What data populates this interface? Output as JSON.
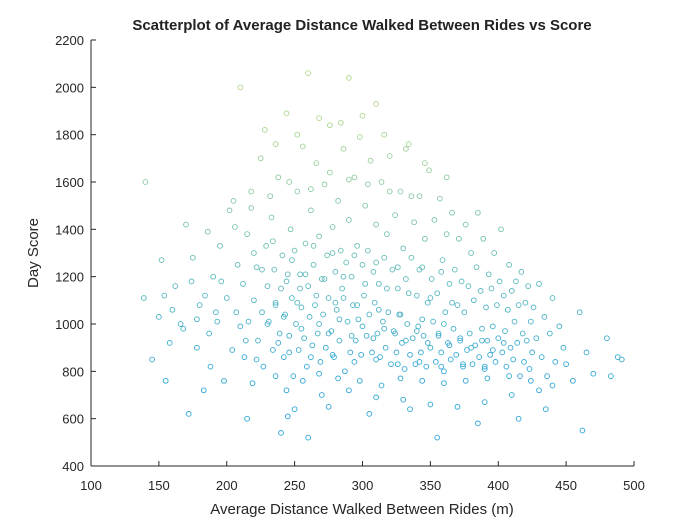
{
  "chart_data": {
    "type": "scatter",
    "title": "Scatterplot of Average Distance Walked Between Rides vs Score",
    "xlabel": "Average Distance Walked Between Rides (m)",
    "ylabel": "Day Score",
    "xlim": [
      100,
      500
    ],
    "ylim": [
      400,
      2200
    ],
    "xticks": [
      "100",
      "150",
      "200",
      "250",
      "300",
      "350",
      "400",
      "450",
      "500"
    ],
    "yticks": [
      "400",
      "600",
      "800",
      "1000",
      "1200",
      "1400",
      "1600",
      "1800",
      "2000",
      "2200"
    ],
    "grid": false,
    "marker": "open-circle",
    "color_low": "#2ea7d6",
    "color_high": "#b3d98c",
    "points": [
      [
        140,
        1600
      ],
      [
        139,
        1110
      ],
      [
        145,
        850
      ],
      [
        152,
        1270
      ],
      [
        155,
        760
      ],
      [
        160,
        1060
      ],
      [
        162,
        1160
      ],
      [
        168,
        980
      ],
      [
        170,
        1420
      ],
      [
        172,
        620
      ],
      [
        175,
        1280
      ],
      [
        178,
        900
      ],
      [
        180,
        1080
      ],
      [
        183,
        720
      ],
      [
        186,
        1390
      ],
      [
        188,
        820
      ],
      [
        190,
        1200
      ],
      [
        193,
        1010
      ],
      [
        195,
        1330
      ],
      [
        198,
        760
      ],
      [
        200,
        1110
      ],
      [
        202,
        1480
      ],
      [
        204,
        890
      ],
      [
        205,
        1520
      ],
      [
        207,
        1050
      ],
      [
        208,
        1250
      ],
      [
        210,
        990
      ],
      [
        210,
        2000
      ],
      [
        212,
        1170
      ],
      [
        213,
        860
      ],
      [
        215,
        1380
      ],
      [
        216,
        1010
      ],
      [
        218,
        1560
      ],
      [
        219,
        750
      ],
      [
        220,
        1100
      ],
      [
        222,
        1240
      ],
      [
        223,
        930
      ],
      [
        225,
        1700
      ],
      [
        226,
        1050
      ],
      [
        227,
        820
      ],
      [
        229,
        1330
      ],
      [
        230,
        1160
      ],
      [
        231,
        1010
      ],
      [
        233,
        1450
      ],
      [
        234,
        890
      ],
      [
        235,
        1230
      ],
      [
        236,
        1080
      ],
      [
        238,
        1620
      ],
      [
        239,
        960
      ],
      [
        240,
        540
      ],
      [
        240,
        1150
      ],
      [
        241,
        1290
      ],
      [
        242,
        860
      ],
      [
        243,
        1040
      ],
      [
        244,
        1890
      ],
      [
        245,
        1210
      ],
      [
        246,
        950
      ],
      [
        247,
        1400
      ],
      [
        248,
        1110
      ],
      [
        249,
        780
      ],
      [
        250,
        1310
      ],
      [
        251,
        1000
      ],
      [
        252,
        1560
      ],
      [
        253,
        890
      ],
      [
        254,
        1210
      ],
      [
        255,
        1070
      ],
      [
        256,
        1750
      ],
      [
        257,
        940
      ],
      [
        258,
        1340
      ],
      [
        259,
        820
      ],
      [
        260,
        1160
      ],
      [
        260,
        2060
      ],
      [
        261,
        1030
      ],
      [
        262,
        1480
      ],
      [
        263,
        910
      ],
      [
        264,
        1250
      ],
      [
        265,
        1080
      ],
      [
        266,
        1680
      ],
      [
        267,
        960
      ],
      [
        268,
        1370
      ],
      [
        269,
        840
      ],
      [
        270,
        1190
      ],
      [
        271,
        1040
      ],
      [
        272,
        1590
      ],
      [
        273,
        900
      ],
      [
        274,
        1290
      ],
      [
        275,
        1110
      ],
      [
        276,
        1840
      ],
      [
        277,
        970
      ],
      [
        278,
        1410
      ],
      [
        279,
        860
      ],
      [
        280,
        1220
      ],
      [
        281,
        1060
      ],
      [
        282,
        1520
      ],
      [
        283,
        930
      ],
      [
        284,
        1310
      ],
      [
        285,
        1150
      ],
      [
        286,
        1740
      ],
      [
        287,
        800
      ],
      [
        288,
        1260
      ],
      [
        289,
        1010
      ],
      [
        290,
        1440
      ],
      [
        290,
        2040
      ],
      [
        291,
        880
      ],
      [
        292,
        1200
      ],
      [
        293,
        1080
      ],
      [
        294,
        1620
      ],
      [
        295,
        930
      ],
      [
        296,
        1330
      ],
      [
        297,
        1020
      ],
      [
        298,
        1790
      ],
      [
        299,
        870
      ],
      [
        300,
        1250
      ],
      [
        301,
        1120
      ],
      [
        302,
        1500
      ],
      [
        303,
        950
      ],
      [
        304,
        1310
      ],
      [
        305,
        1040
      ],
      [
        306,
        1690
      ],
      [
        307,
        880
      ],
      [
        308,
        1220
      ],
      [
        309,
        1090
      ],
      [
        310,
        1420
      ],
      [
        310,
        1930
      ],
      [
        311,
        960
      ],
      [
        312,
        1170
      ],
      [
        313,
        860
      ],
      [
        314,
        1600
      ],
      [
        315,
        1010
      ],
      [
        316,
        1280
      ],
      [
        317,
        900
      ],
      [
        318,
        1380
      ],
      [
        319,
        1050
      ],
      [
        320,
        1710
      ],
      [
        321,
        830
      ],
      [
        322,
        1230
      ],
      [
        323,
        970
      ],
      [
        324,
        1460
      ],
      [
        325,
        880
      ],
      [
        326,
        1150
      ],
      [
        327,
        1040
      ],
      [
        328,
        1560
      ],
      [
        329,
        920
      ],
      [
        330,
        1320
      ],
      [
        331,
        810
      ],
      [
        332,
        1190
      ],
      [
        333,
        1000
      ],
      [
        334,
        1760
      ],
      [
        335,
        870
      ],
      [
        336,
        1280
      ],
      [
        337,
        940
      ],
      [
        338,
        1430
      ],
      [
        339,
        830
      ],
      [
        340,
        1120
      ],
      [
        341,
        990
      ],
      [
        342,
        1540
      ],
      [
        343,
        880
      ],
      [
        344,
        1240
      ],
      [
        345,
        950
      ],
      [
        346,
        1360
      ],
      [
        347,
        820
      ],
      [
        348,
        1090
      ],
      [
        349,
        1650
      ],
      [
        350,
        900
      ],
      [
        351,
        1190
      ],
      [
        352,
        1010
      ],
      [
        353,
        1440
      ],
      [
        354,
        840
      ],
      [
        355,
        1130
      ],
      [
        356,
        960
      ],
      [
        357,
        1530
      ],
      [
        358,
        880
      ],
      [
        359,
        1270
      ],
      [
        360,
        800
      ],
      [
        361,
        1050
      ],
      [
        362,
        1380
      ],
      [
        363,
        920
      ],
      [
        364,
        1170
      ],
      [
        365,
        850
      ],
      [
        366,
        1470
      ],
      [
        367,
        980
      ],
      [
        368,
        1230
      ],
      [
        369,
        870
      ],
      [
        370,
        1080
      ],
      [
        371,
        1360
      ],
      [
        372,
        930
      ],
      [
        373,
        1180
      ],
      [
        374,
        820
      ],
      [
        375,
        1050
      ],
      [
        376,
        1420
      ],
      [
        377,
        890
      ],
      [
        378,
        1160
      ],
      [
        379,
        960
      ],
      [
        380,
        1300
      ],
      [
        381,
        830
      ],
      [
        382,
        1100
      ],
      [
        383,
        910
      ],
      [
        384,
        1240
      ],
      [
        385,
        1470
      ],
      [
        386,
        860
      ],
      [
        387,
        1140
      ],
      [
        388,
        980
      ],
      [
        389,
        1360
      ],
      [
        390,
        820
      ],
      [
        391,
        1070
      ],
      [
        392,
        930
      ],
      [
        393,
        1210
      ],
      [
        394,
        870
      ],
      [
        395,
        1150
      ],
      [
        396,
        990
      ],
      [
        397,
        1300
      ],
      [
        398,
        840
      ],
      [
        399,
        1080
      ],
      [
        400,
        940
      ],
      [
        401,
        1180
      ],
      [
        402,
        1400
      ],
      [
        403,
        880
      ],
      [
        404,
        1120
      ],
      [
        405,
        970
      ],
      [
        406,
        820
      ],
      [
        407,
        1060
      ],
      [
        408,
        1250
      ],
      [
        409,
        900
      ],
      [
        410,
        1140
      ],
      [
        411,
        850
      ],
      [
        412,
        1010
      ],
      [
        413,
        1180
      ],
      [
        414,
        920
      ],
      [
        415,
        1080
      ],
      [
        416,
        780
      ],
      [
        417,
        1220
      ],
      [
        418,
        960
      ],
      [
        419,
        840
      ],
      [
        420,
        1090
      ],
      [
        421,
        930
      ],
      [
        422,
        1160
      ],
      [
        423,
        810
      ],
      [
        424,
        1010
      ],
      [
        425,
        880
      ],
      [
        426,
        1070
      ],
      [
        428,
        940
      ],
      [
        430,
        1170
      ],
      [
        432,
        860
      ],
      [
        434,
        1030
      ],
      [
        436,
        780
      ],
      [
        438,
        960
      ],
      [
        440,
        1110
      ],
      [
        442,
        840
      ],
      [
        445,
        990
      ],
      [
        448,
        900
      ],
      [
        450,
        830
      ],
      [
        455,
        760
      ],
      [
        460,
        1050
      ],
      [
        462,
        550
      ],
      [
        465,
        880
      ],
      [
        470,
        790
      ],
      [
        480,
        940
      ],
      [
        483,
        780
      ],
      [
        488,
        860
      ],
      [
        491,
        850
      ],
      [
        242,
        1030
      ],
      [
        255,
        980
      ],
      [
        268,
        1000
      ],
      [
        275,
        960
      ],
      [
        283,
        1020
      ],
      [
        292,
        950
      ],
      [
        300,
        990
      ],
      [
        308,
        940
      ],
      [
        316,
        980
      ],
      [
        324,
        960
      ],
      [
        332,
        930
      ],
      [
        340,
        970
      ],
      [
        348,
        920
      ],
      [
        356,
        950
      ],
      [
        364,
        910
      ],
      [
        372,
        940
      ],
      [
        380,
        900
      ],
      [
        388,
        930
      ],
      [
        396,
        890
      ],
      [
        404,
        920
      ],
      [
        246,
        880
      ],
      [
        262,
        860
      ],
      [
        278,
        870
      ],
      [
        294,
        840
      ],
      [
        310,
        850
      ],
      [
        326,
        830
      ],
      [
        342,
        840
      ],
      [
        358,
        820
      ],
      [
        374,
        830
      ],
      [
        390,
        810
      ],
      [
        230,
        1000
      ],
      [
        238,
        920
      ],
      [
        252,
        1090
      ],
      [
        266,
        1120
      ],
      [
        280,
        1090
      ],
      [
        296,
        1080
      ],
      [
        312,
        1060
      ],
      [
        328,
        1040
      ],
      [
        344,
        1020
      ],
      [
        360,
        1000
      ],
      [
        226,
        1230
      ],
      [
        244,
        1180
      ],
      [
        258,
        1210
      ],
      [
        272,
        1190
      ],
      [
        286,
        1200
      ],
      [
        302,
        1170
      ],
      [
        318,
        1150
      ],
      [
        334,
        1130
      ],
      [
        350,
        1110
      ],
      [
        366,
        1090
      ],
      [
        250,
        640
      ],
      [
        270,
        700
      ],
      [
        290,
        720
      ],
      [
        310,
        690
      ],
      [
        330,
        680
      ],
      [
        350,
        660
      ],
      [
        370,
        650
      ],
      [
        390,
        670
      ],
      [
        410,
        700
      ],
      [
        430,
        720
      ],
      [
        215,
        600
      ],
      [
        245,
        610
      ],
      [
        275,
        650
      ],
      [
        305,
        620
      ],
      [
        335,
        640
      ],
      [
        355,
        520
      ],
      [
        385,
        580
      ],
      [
        415,
        600
      ],
      [
        435,
        640
      ],
      [
        260,
        520
      ],
      [
        220,
        1300
      ],
      [
        234,
        1350
      ],
      [
        248,
        1270
      ],
      [
        264,
        1330
      ],
      [
        278,
        1300
      ],
      [
        294,
        1290
      ],
      [
        310,
        1260
      ],
      [
        326,
        1240
      ],
      [
        342,
        1230
      ],
      [
        358,
        1220
      ],
      [
        206,
        1410
      ],
      [
        218,
        1490
      ],
      [
        232,
        1540
      ],
      [
        246,
        1600
      ],
      [
        262,
        1570
      ],
      [
        276,
        1640
      ],
      [
        290,
        1610
      ],
      [
        304,
        1590
      ],
      [
        320,
        1560
      ],
      [
        336,
        1540
      ],
      [
        228,
        1820
      ],
      [
        236,
        1760
      ],
      [
        252,
        1800
      ],
      [
        268,
        1870
      ],
      [
        284,
        1850
      ],
      [
        300,
        1880
      ],
      [
        316,
        1800
      ],
      [
        332,
        1740
      ],
      [
        346,
        1680
      ],
      [
        362,
        1620
      ],
      [
        196,
        1180
      ],
      [
        192,
        1050
      ],
      [
        187,
        960
      ],
      [
        184,
        1120
      ],
      [
        178,
        1020
      ],
      [
        174,
        1180
      ],
      [
        166,
        1000
      ],
      [
        158,
        920
      ],
      [
        154,
        1120
      ],
      [
        150,
        1030
      ],
      [
        214,
        930
      ],
      [
        222,
        850
      ],
      [
        236,
        780
      ],
      [
        244,
        720
      ],
      [
        256,
        760
      ],
      [
        268,
        790
      ],
      [
        282,
        770
      ],
      [
        298,
        760
      ],
      [
        314,
        740
      ],
      [
        328,
        770
      ],
      [
        344,
        760
      ],
      [
        360,
        750
      ],
      [
        376,
        760
      ],
      [
        392,
        770
      ],
      [
        408,
        780
      ],
      [
        424,
        760
      ],
      [
        440,
        740
      ],
      [
        236,
        1090
      ],
      [
        254,
        1150
      ],
      [
        286,
        1110
      ]
    ]
  }
}
